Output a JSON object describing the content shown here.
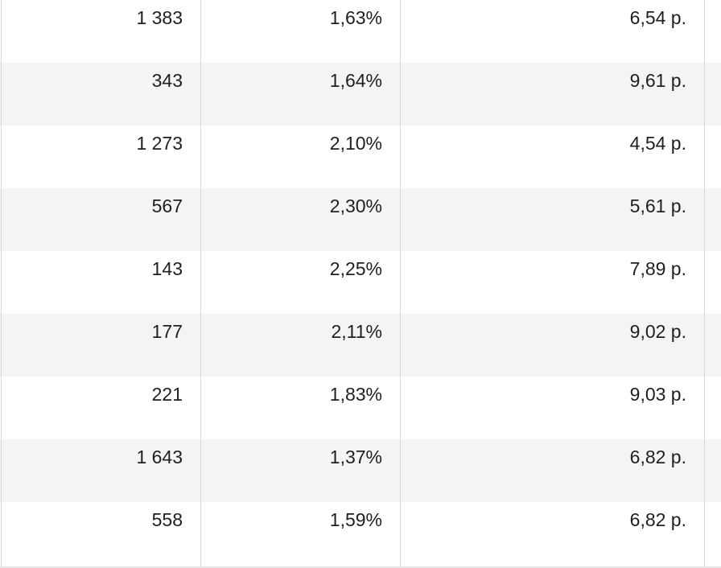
{
  "table": {
    "rows": [
      {
        "c1": "1 383",
        "c2": "1,63%",
        "c3": "6,54 р."
      },
      {
        "c1": "343",
        "c2": "1,64%",
        "c3": "9,61 р."
      },
      {
        "c1": "1 273",
        "c2": "2,10%",
        "c3": "4,54 р."
      },
      {
        "c1": "567",
        "c2": "2,30%",
        "c3": "5,61 р."
      },
      {
        "c1": "143",
        "c2": "2,25%",
        "c3": "7,89 р."
      },
      {
        "c1": "177",
        "c2": "2,11%",
        "c3": "9,02 р."
      },
      {
        "c1": "221",
        "c2": "1,83%",
        "c3": "9,03 р."
      },
      {
        "c1": "1 643",
        "c2": "1,37%",
        "c3": "6,82 р."
      },
      {
        "c1": "558",
        "c2": "1,59%",
        "c3": "6,82 р."
      }
    ]
  }
}
